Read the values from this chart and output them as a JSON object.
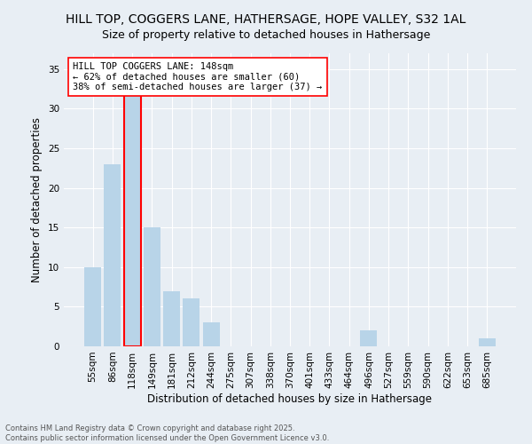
{
  "title": "HILL TOP, COGGERS LANE, HATHERSAGE, HOPE VALLEY, S32 1AL",
  "subtitle": "Size of property relative to detached houses in Hathersage",
  "xlabel": "Distribution of detached houses by size in Hathersage",
  "ylabel": "Number of detached properties",
  "categories": [
    "55sqm",
    "86sqm",
    "118sqm",
    "149sqm",
    "181sqm",
    "212sqm",
    "244sqm",
    "275sqm",
    "307sqm",
    "338sqm",
    "370sqm",
    "401sqm",
    "433sqm",
    "464sqm",
    "496sqm",
    "527sqm",
    "559sqm",
    "590sqm",
    "622sqm",
    "653sqm",
    "685sqm"
  ],
  "values": [
    10,
    23,
    32,
    15,
    7,
    6,
    3,
    0,
    0,
    0,
    0,
    0,
    0,
    0,
    2,
    0,
    0,
    0,
    0,
    0,
    1
  ],
  "highlight_index": 2,
  "bar_color": "#b8d4e8",
  "annotation_line1": "HILL TOP COGGERS LANE: 148sqm",
  "annotation_line2": "← 62% of detached houses are smaller (60)",
  "annotation_line3": "38% of semi-detached houses are larger (37) →",
  "ylim": [
    0,
    37
  ],
  "yticks": [
    0,
    5,
    10,
    15,
    20,
    25,
    30,
    35
  ],
  "footer_text": "Contains HM Land Registry data © Crown copyright and database right 2025.\nContains public sector information licensed under the Open Government Licence v3.0.",
  "background_color": "#e8eef4",
  "grid_color": "#ffffff",
  "title_fontsize": 10,
  "subtitle_fontsize": 9,
  "axis_label_fontsize": 8.5,
  "tick_fontsize": 7.5,
  "annotation_fontsize": 7.5,
  "footer_fontsize": 6
}
